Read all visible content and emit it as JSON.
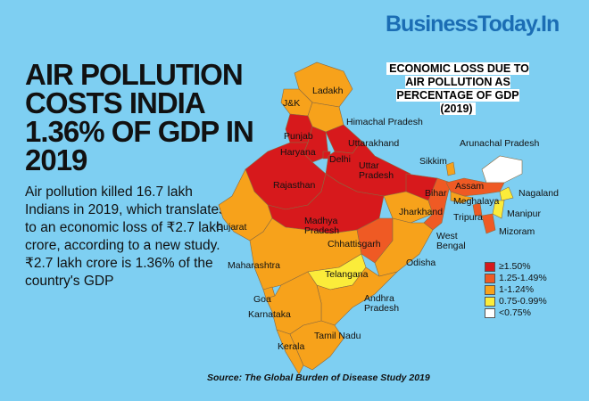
{
  "logo": "BusinessToday.In",
  "headline": "AIR POLLUTION COSTS INDIA 1.36% OF GDP IN 2019",
  "description": "Air pollution killed 16.7 lakh Indians in 2019, which translates to an economic loss of ₹2.7 lakh crore, according to a new study. ₹2.7 lakh crore is 1.36% of the country's GDP",
  "map": {
    "title": "ECONOMIC LOSS DUE TO AIR POLLUTION AS PERCENTAGE OF GDP (2019)",
    "colors": {
      "c1": "#d7191c",
      "c2": "#ef5a24",
      "c3": "#f7a21b",
      "c4": "#fbec3a",
      "c5": "#ffffff"
    },
    "legend": [
      {
        "key": "c1",
        "label": "≥1.50%"
      },
      {
        "key": "c2",
        "label": "1.25-1.49%"
      },
      {
        "key": "c3",
        "label": "1-1.24%"
      },
      {
        "key": "c4",
        "label": "0.75-0.99%"
      },
      {
        "key": "c5",
        "label": "<0.75%"
      }
    ],
    "states": [
      {
        "name": "Ladakh",
        "cat": "c3"
      },
      {
        "name": "J&K",
        "cat": "c3"
      },
      {
        "name": "Himachal Pradesh",
        "cat": "c3"
      },
      {
        "name": "Punjab",
        "cat": "c1"
      },
      {
        "name": "Haryana",
        "cat": "c1"
      },
      {
        "name": "Delhi",
        "cat": "c1"
      },
      {
        "name": "Uttarakhand",
        "cat": "c1"
      },
      {
        "name": "Uttar Pradesh",
        "cat": "c1"
      },
      {
        "name": "Rajasthan",
        "cat": "c1"
      },
      {
        "name": "Bihar",
        "cat": "c1"
      },
      {
        "name": "Madhya Pradesh",
        "cat": "c1"
      },
      {
        "name": "Jharkhand",
        "cat": "c3"
      },
      {
        "name": "Chhattisgarh",
        "cat": "c2"
      },
      {
        "name": "Gujarat",
        "cat": "c3"
      },
      {
        "name": "Maharashtra",
        "cat": "c3"
      },
      {
        "name": "West Bengal",
        "cat": "c2"
      },
      {
        "name": "Odisha",
        "cat": "c3"
      },
      {
        "name": "Telangana",
        "cat": "c4"
      },
      {
        "name": "Andhra Pradesh",
        "cat": "c3"
      },
      {
        "name": "Goa",
        "cat": "c3"
      },
      {
        "name": "Karnataka",
        "cat": "c3"
      },
      {
        "name": "Kerala",
        "cat": "c3"
      },
      {
        "name": "Tamil Nadu",
        "cat": "c3"
      },
      {
        "name": "Sikkim",
        "cat": "c3"
      },
      {
        "name": "Arunachal Pradesh",
        "cat": "c5"
      },
      {
        "name": "Assam",
        "cat": "c2"
      },
      {
        "name": "Nagaland",
        "cat": "c4"
      },
      {
        "name": "Meghalaya",
        "cat": "c3"
      },
      {
        "name": "Manipur",
        "cat": "c4"
      },
      {
        "name": "Tripura",
        "cat": "c2"
      },
      {
        "name": "Mizoram",
        "cat": "c2"
      }
    ]
  },
  "source": "Source: The Global Burden of Disease Study 2019"
}
